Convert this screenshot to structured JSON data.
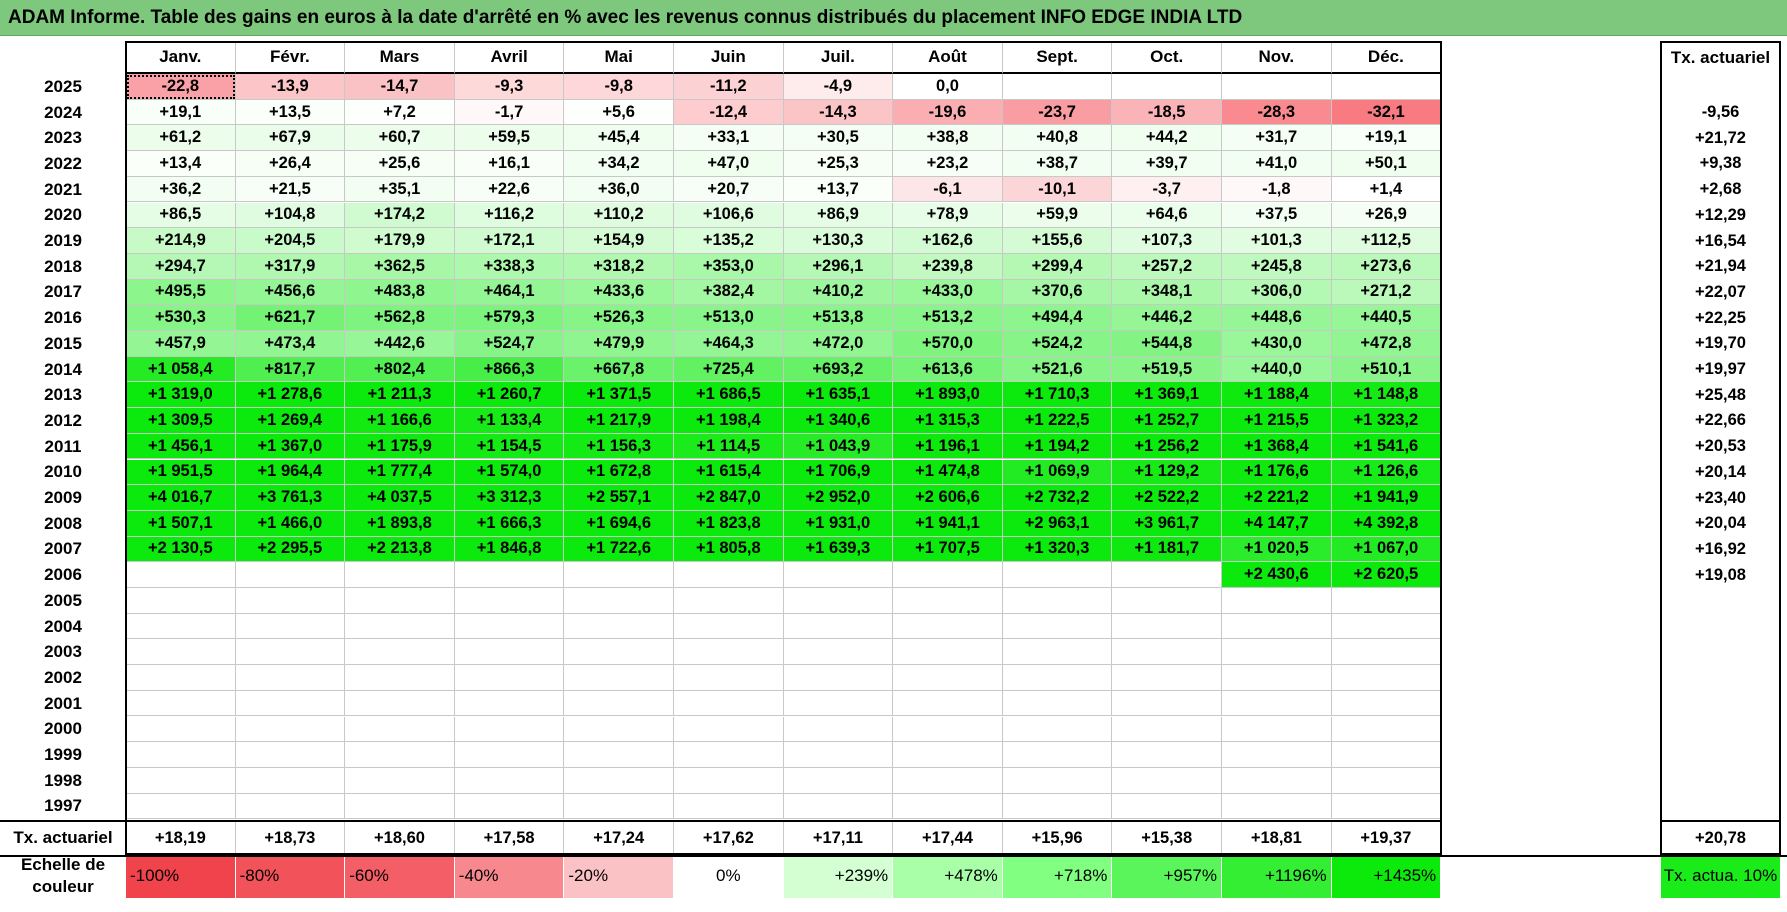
{
  "title": "ADAM Informe. Table des gains en euros à la date d'arrêté en % avec les revenus connus distribués du placement INFO EDGE INDIA LTD",
  "months": [
    "Janv.",
    "Févr.",
    "Mars",
    "Avril",
    "Mai",
    "Juin",
    "Juil.",
    "Août",
    "Sept.",
    "Oct.",
    "Nov.",
    "Déc."
  ],
  "tx_header": "Tx. actuariel",
  "rows": [
    {
      "year": "2025",
      "values": [
        "-22,8",
        "-13,9",
        "-14,7",
        "-9,3",
        "-9,8",
        "-11,2",
        "-4,9",
        "0,0",
        "",
        "",
        "",
        ""
      ],
      "tx": ""
    },
    {
      "year": "2024",
      "values": [
        "+19,1",
        "+13,5",
        "+7,2",
        "-1,7",
        "+5,6",
        "-12,4",
        "-14,3",
        "-19,6",
        "-23,7",
        "-18,5",
        "-28,3",
        "-32,1"
      ],
      "tx": "-9,56"
    },
    {
      "year": "2023",
      "values": [
        "+61,2",
        "+67,9",
        "+60,7",
        "+59,5",
        "+45,4",
        "+33,1",
        "+30,5",
        "+38,8",
        "+40,8",
        "+44,2",
        "+31,7",
        "+19,1"
      ],
      "tx": "+21,72"
    },
    {
      "year": "2022",
      "values": [
        "+13,4",
        "+26,4",
        "+25,6",
        "+16,1",
        "+34,2",
        "+47,0",
        "+25,3",
        "+23,2",
        "+38,7",
        "+39,7",
        "+41,0",
        "+50,1"
      ],
      "tx": "+9,38"
    },
    {
      "year": "2021",
      "values": [
        "+36,2",
        "+21,5",
        "+35,1",
        "+22,6",
        "+36,0",
        "+20,7",
        "+13,7",
        "-6,1",
        "-10,1",
        "-3,7",
        "-1,8",
        "+1,4"
      ],
      "tx": "+2,68"
    },
    {
      "year": "2020",
      "values": [
        "+86,5",
        "+104,8",
        "+174,2",
        "+116,2",
        "+110,2",
        "+106,6",
        "+86,9",
        "+78,9",
        "+59,9",
        "+64,6",
        "+37,5",
        "+26,9"
      ],
      "tx": "+12,29"
    },
    {
      "year": "2019",
      "values": [
        "+214,9",
        "+204,5",
        "+179,9",
        "+172,1",
        "+154,9",
        "+135,2",
        "+130,3",
        "+162,6",
        "+155,6",
        "+107,3",
        "+101,3",
        "+112,5"
      ],
      "tx": "+16,54"
    },
    {
      "year": "2018",
      "values": [
        "+294,7",
        "+317,9",
        "+362,5",
        "+338,3",
        "+318,2",
        "+353,0",
        "+296,1",
        "+239,8",
        "+299,4",
        "+257,2",
        "+245,8",
        "+273,6"
      ],
      "tx": "+21,94"
    },
    {
      "year": "2017",
      "values": [
        "+495,5",
        "+456,6",
        "+483,8",
        "+464,1",
        "+433,6",
        "+382,4",
        "+410,2",
        "+433,0",
        "+370,6",
        "+348,1",
        "+306,0",
        "+271,2"
      ],
      "tx": "+22,07"
    },
    {
      "year": "2016",
      "values": [
        "+530,3",
        "+621,7",
        "+562,8",
        "+579,3",
        "+526,3",
        "+513,0",
        "+513,8",
        "+513,2",
        "+494,4",
        "+446,2",
        "+448,6",
        "+440,5"
      ],
      "tx": "+22,25"
    },
    {
      "year": "2015",
      "values": [
        "+457,9",
        "+473,4",
        "+442,6",
        "+524,7",
        "+479,9",
        "+464,3",
        "+472,0",
        "+570,0",
        "+524,2",
        "+544,8",
        "+430,0",
        "+472,8"
      ],
      "tx": "+19,70"
    },
    {
      "year": "2014",
      "values": [
        "+1 058,4",
        "+817,7",
        "+802,4",
        "+866,3",
        "+667,8",
        "+725,4",
        "+693,2",
        "+613,6",
        "+521,6",
        "+519,5",
        "+440,0",
        "+510,1"
      ],
      "tx": "+19,97"
    },
    {
      "year": "2013",
      "values": [
        "+1 319,0",
        "+1 278,6",
        "+1 211,3",
        "+1 260,7",
        "+1 371,5",
        "+1 686,5",
        "+1 635,1",
        "+1 893,0",
        "+1 710,3",
        "+1 369,1",
        "+1 188,4",
        "+1 148,8"
      ],
      "tx": "+25,48"
    },
    {
      "year": "2012",
      "values": [
        "+1 309,5",
        "+1 269,4",
        "+1 166,6",
        "+1 133,4",
        "+1 217,9",
        "+1 198,4",
        "+1 340,6",
        "+1 315,3",
        "+1 222,5",
        "+1 252,7",
        "+1 215,5",
        "+1 323,2"
      ],
      "tx": "+22,66"
    },
    {
      "year": "2011",
      "values": [
        "+1 456,1",
        "+1 367,0",
        "+1 175,9",
        "+1 154,5",
        "+1 156,3",
        "+1 114,5",
        "+1 043,9",
        "+1 196,1",
        "+1 194,2",
        "+1 256,2",
        "+1 368,4",
        "+1 541,6"
      ],
      "tx": "+20,53"
    },
    {
      "year": "2010",
      "values": [
        "+1 951,5",
        "+1 964,4",
        "+1 777,4",
        "+1 574,0",
        "+1 672,8",
        "+1 615,4",
        "+1 706,9",
        "+1 474,8",
        "+1 069,9",
        "+1 129,2",
        "+1 176,6",
        "+1 126,6"
      ],
      "tx": "+20,14"
    },
    {
      "year": "2009",
      "values": [
        "+4 016,7",
        "+3 761,3",
        "+4 037,5",
        "+3 312,3",
        "+2 557,1",
        "+2 847,0",
        "+2 952,0",
        "+2 606,6",
        "+2 732,2",
        "+2 522,2",
        "+2 221,2",
        "+1 941,9"
      ],
      "tx": "+23,40"
    },
    {
      "year": "2008",
      "values": [
        "+1 507,1",
        "+1 466,0",
        "+1 893,8",
        "+1 666,3",
        "+1 694,6",
        "+1 823,8",
        "+1 931,0",
        "+1 941,1",
        "+2 963,1",
        "+3 961,7",
        "+4 147,7",
        "+4 392,8"
      ],
      "tx": "+20,04"
    },
    {
      "year": "2007",
      "values": [
        "+2 130,5",
        "+2 295,5",
        "+2 213,8",
        "+1 846,8",
        "+1 722,6",
        "+1 805,8",
        "+1 639,3",
        "+1 707,5",
        "+1 320,3",
        "+1 181,7",
        "+1 020,5",
        "+1 067,0"
      ],
      "tx": "+16,92"
    },
    {
      "year": "2006",
      "values": [
        "",
        "",
        "",
        "",
        "",
        "",
        "",
        "",
        "",
        "",
        "+2 430,6",
        "+2 620,5"
      ],
      "tx": "+19,08"
    },
    {
      "year": "2005",
      "values": [
        "",
        "",
        "",
        "",
        "",
        "",
        "",
        "",
        "",
        "",
        "",
        ""
      ],
      "tx": ""
    },
    {
      "year": "2004",
      "values": [
        "",
        "",
        "",
        "",
        "",
        "",
        "",
        "",
        "",
        "",
        "",
        ""
      ],
      "tx": ""
    },
    {
      "year": "2003",
      "values": [
        "",
        "",
        "",
        "",
        "",
        "",
        "",
        "",
        "",
        "",
        "",
        ""
      ],
      "tx": ""
    },
    {
      "year": "2002",
      "values": [
        "",
        "",
        "",
        "",
        "",
        "",
        "",
        "",
        "",
        "",
        "",
        ""
      ],
      "tx": ""
    },
    {
      "year": "2001",
      "values": [
        "",
        "",
        "",
        "",
        "",
        "",
        "",
        "",
        "",
        "",
        "",
        ""
      ],
      "tx": ""
    },
    {
      "year": "2000",
      "values": [
        "",
        "",
        "",
        "",
        "",
        "",
        "",
        "",
        "",
        "",
        "",
        ""
      ],
      "tx": ""
    },
    {
      "year": "1999",
      "values": [
        "",
        "",
        "",
        "",
        "",
        "",
        "",
        "",
        "",
        "",
        "",
        ""
      ],
      "tx": ""
    },
    {
      "year": "1998",
      "values": [
        "",
        "",
        "",
        "",
        "",
        "",
        "",
        "",
        "",
        "",
        "",
        ""
      ],
      "tx": ""
    },
    {
      "year": "1997",
      "values": [
        "",
        "",
        "",
        "",
        "",
        "",
        "",
        "",
        "",
        "",
        "",
        ""
      ],
      "tx": ""
    }
  ],
  "footer": {
    "label": "Tx. actuariel",
    "values": [
      "+18,19",
      "+18,73",
      "+18,60",
      "+17,58",
      "+17,24",
      "+17,62",
      "+17,11",
      "+17,44",
      "+15,96",
      "+15,38",
      "+18,81",
      "+19,37"
    ],
    "tx": "+20,78"
  },
  "scale": {
    "label": "Echelle de couleur",
    "items": [
      {
        "text": "-100%",
        "color": "#f0434b"
      },
      {
        "text": "-80%",
        "color": "#f2525a"
      },
      {
        "text": "-60%",
        "color": "#f45e66"
      },
      {
        "text": "-40%",
        "color": "#f6888e"
      },
      {
        "text": "-20%",
        "color": "#fac2c5"
      },
      {
        "text": "0%",
        "color": "#ffffff"
      },
      {
        "text": "+239%",
        "color": "#d3ffd3"
      },
      {
        "text": "+478%",
        "color": "#a8ffa8"
      },
      {
        "text": "+718%",
        "color": "#80ff80"
      },
      {
        "text": "+957%",
        "color": "#5af55a"
      },
      {
        "text": "+1196%",
        "color": "#33ee33"
      },
      {
        "text": "+1435%",
        "color": "#0cea0c"
      }
    ],
    "tx_label": "Tx. actua. 10%",
    "tx_color": "#19ec19"
  }
}
